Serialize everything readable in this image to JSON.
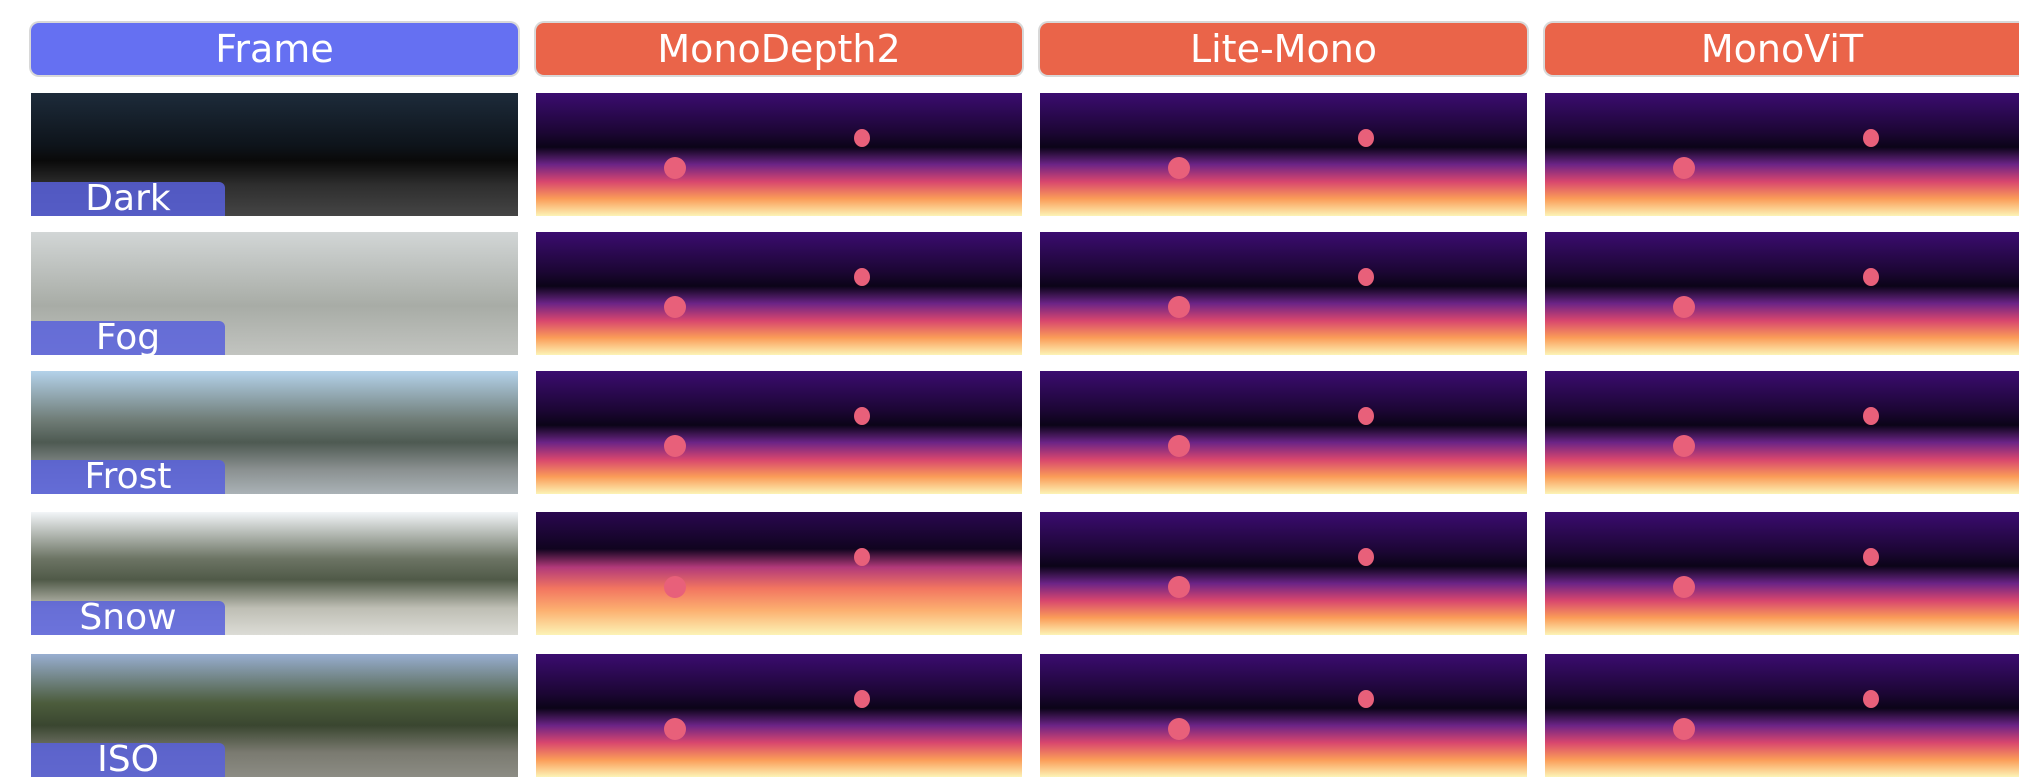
{
  "headers": [
    "Frame",
    "MonoDepth2",
    "Lite-Mono",
    "MonoViT"
  ],
  "rows": [
    {
      "label": "Dark"
    },
    {
      "label": "Fog"
    },
    {
      "label": "Frost"
    },
    {
      "label": "Snow"
    },
    {
      "label": "ISO"
    }
  ]
}
